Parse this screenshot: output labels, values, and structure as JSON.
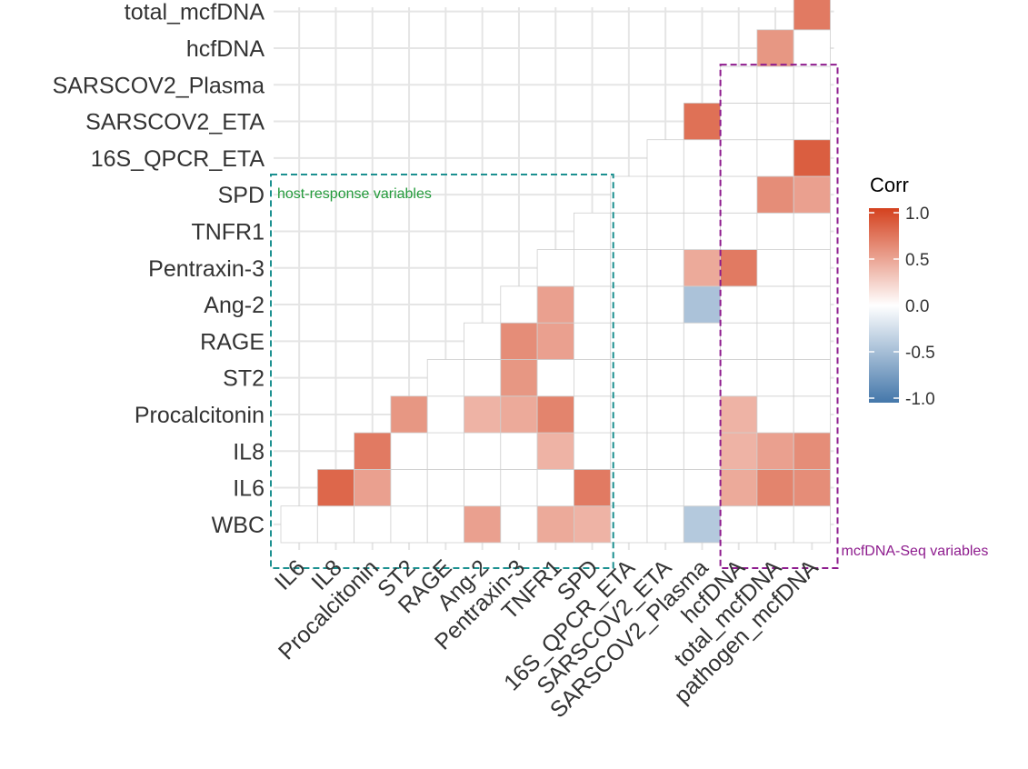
{
  "chart_data": {
    "type": "heatmap",
    "title": "",
    "variables": [
      "WBC",
      "IL6",
      "IL8",
      "Procalcitonin",
      "ST2",
      "RAGE",
      "Ang-2",
      "Pentraxin-3",
      "TNFR1",
      "SPD",
      "16S_QPCR_ETA",
      "SARSCOV2_ETA",
      "SARSCOV2_Plasma",
      "hcfDNA",
      "total_mcfDNA",
      "pathogen_mcfDNA"
    ],
    "x_labels": [
      "IL6",
      "IL8",
      "Procalcitonin",
      "ST2",
      "RAGE",
      "Ang-2",
      "Pentraxin-3",
      "TNFR1",
      "SPD",
      "16S_QPCR_ETA",
      "SARSCOV2_ETA",
      "SARSCOV2_Plasma",
      "hcfDNA",
      "total_mcfDNA",
      "pathogen_mcfDNA"
    ],
    "y_labels": [
      "WBC",
      "IL6",
      "IL8",
      "Procalcitonin",
      "ST2",
      "RAGE",
      "Ang-2",
      "Pentraxin-3",
      "TNFR1",
      "SPD",
      "16S_QPCR_ETA",
      "SARSCOV2_ETA",
      "SARSCOV2_Plasma",
      "hcfDNA",
      "total_mcfDNA"
    ],
    "cells": [
      [
        "IL6",
        "WBC",
        0
      ],
      [
        "IL8",
        "WBC",
        0
      ],
      [
        "Procalcitonin",
        "WBC",
        0
      ],
      [
        "ST2",
        "WBC",
        0
      ],
      [
        "RAGE",
        "WBC",
        0
      ],
      [
        "Ang-2",
        "WBC",
        0.5
      ],
      [
        "Pentraxin-3",
        "WBC",
        0
      ],
      [
        "TNFR1",
        "WBC",
        0.45
      ],
      [
        "SPD",
        "WBC",
        0.4
      ],
      [
        "16S_QPCR_ETA",
        "WBC",
        0
      ],
      [
        "SARSCOV2_ETA",
        "WBC",
        0
      ],
      [
        "SARSCOV2_Plasma",
        "WBC",
        -0.4
      ],
      [
        "hcfDNA",
        "WBC",
        0
      ],
      [
        "total_mcfDNA",
        "WBC",
        0
      ],
      [
        "pathogen_mcfDNA",
        "WBC",
        0
      ],
      [
        "IL8",
        "IL6",
        0.8
      ],
      [
        "Procalcitonin",
        "IL6",
        0.5
      ],
      [
        "ST2",
        "IL6",
        0
      ],
      [
        "RAGE",
        "IL6",
        0
      ],
      [
        "Ang-2",
        "IL6",
        0
      ],
      [
        "Pentraxin-3",
        "IL6",
        0
      ],
      [
        "TNFR1",
        "IL6",
        0
      ],
      [
        "SPD",
        "IL6",
        0.7
      ],
      [
        "16S_QPCR_ETA",
        "IL6",
        0
      ],
      [
        "SARSCOV2_ETA",
        "IL6",
        0
      ],
      [
        "SARSCOV2_Plasma",
        "IL6",
        0
      ],
      [
        "hcfDNA",
        "IL6",
        0.45
      ],
      [
        "total_mcfDNA",
        "IL6",
        0.65
      ],
      [
        "pathogen_mcfDNA",
        "IL6",
        0.6
      ],
      [
        "Procalcitonin",
        "IL8",
        0.7
      ],
      [
        "ST2",
        "IL8",
        0
      ],
      [
        "RAGE",
        "IL8",
        0
      ],
      [
        "Ang-2",
        "IL8",
        0
      ],
      [
        "Pentraxin-3",
        "IL8",
        0
      ],
      [
        "TNFR1",
        "IL8",
        0.4
      ],
      [
        "SPD",
        "IL8",
        0
      ],
      [
        "16S_QPCR_ETA",
        "IL8",
        0
      ],
      [
        "SARSCOV2_ETA",
        "IL8",
        0
      ],
      [
        "SARSCOV2_Plasma",
        "IL8",
        0
      ],
      [
        "hcfDNA",
        "IL8",
        0.4
      ],
      [
        "total_mcfDNA",
        "IL8",
        0.5
      ],
      [
        "pathogen_mcfDNA",
        "IL8",
        0.6
      ],
      [
        "ST2",
        "Procalcitonin",
        0.55
      ],
      [
        "RAGE",
        "Procalcitonin",
        0
      ],
      [
        "Ang-2",
        "Procalcitonin",
        0.4
      ],
      [
        "Pentraxin-3",
        "Procalcitonin",
        0.45
      ],
      [
        "TNFR1",
        "Procalcitonin",
        0.65
      ],
      [
        "SPD",
        "Procalcitonin",
        0
      ],
      [
        "16S_QPCR_ETA",
        "Procalcitonin",
        0
      ],
      [
        "SARSCOV2_ETA",
        "Procalcitonin",
        0
      ],
      [
        "SARSCOV2_Plasma",
        "Procalcitonin",
        0
      ],
      [
        "hcfDNA",
        "Procalcitonin",
        0.4
      ],
      [
        "total_mcfDNA",
        "Procalcitonin",
        0
      ],
      [
        "pathogen_mcfDNA",
        "Procalcitonin",
        0
      ],
      [
        "RAGE",
        "ST2",
        0
      ],
      [
        "Ang-2",
        "ST2",
        0
      ],
      [
        "Pentraxin-3",
        "ST2",
        0.55
      ],
      [
        "TNFR1",
        "ST2",
        0
      ],
      [
        "SPD",
        "ST2",
        0
      ],
      [
        "16S_QPCR_ETA",
        "ST2",
        0
      ],
      [
        "SARSCOV2_ETA",
        "ST2",
        0
      ],
      [
        "SARSCOV2_Plasma",
        "ST2",
        0
      ],
      [
        "hcfDNA",
        "ST2",
        0
      ],
      [
        "total_mcfDNA",
        "ST2",
        0
      ],
      [
        "pathogen_mcfDNA",
        "ST2",
        0
      ],
      [
        "Ang-2",
        "RAGE",
        0
      ],
      [
        "Pentraxin-3",
        "RAGE",
        0.6
      ],
      [
        "TNFR1",
        "RAGE",
        0.5
      ],
      [
        "SPD",
        "RAGE",
        0
      ],
      [
        "16S_QPCR_ETA",
        "RAGE",
        0
      ],
      [
        "SARSCOV2_ETA",
        "RAGE",
        0
      ],
      [
        "SARSCOV2_Plasma",
        "RAGE",
        0
      ],
      [
        "hcfDNA",
        "RAGE",
        0
      ],
      [
        "total_mcfDNA",
        "RAGE",
        0
      ],
      [
        "pathogen_mcfDNA",
        "RAGE",
        0
      ],
      [
        "Pentraxin-3",
        "Ang-2",
        0
      ],
      [
        "TNFR1",
        "Ang-2",
        0.5
      ],
      [
        "SPD",
        "Ang-2",
        0
      ],
      [
        "16S_QPCR_ETA",
        "Ang-2",
        0
      ],
      [
        "SARSCOV2_ETA",
        "Ang-2",
        0
      ],
      [
        "SARSCOV2_Plasma",
        "Ang-2",
        -0.45
      ],
      [
        "hcfDNA",
        "Ang-2",
        0
      ],
      [
        "total_mcfDNA",
        "Ang-2",
        0
      ],
      [
        "pathogen_mcfDNA",
        "Ang-2",
        0
      ],
      [
        "TNFR1",
        "Pentraxin-3",
        0
      ],
      [
        "SPD",
        "Pentraxin-3",
        0
      ],
      [
        "16S_QPCR_ETA",
        "Pentraxin-3",
        0
      ],
      [
        "SARSCOV2_ETA",
        "Pentraxin-3",
        0
      ],
      [
        "SARSCOV2_Plasma",
        "Pentraxin-3",
        0.45
      ],
      [
        "hcfDNA",
        "Pentraxin-3",
        0.7
      ],
      [
        "total_mcfDNA",
        "Pentraxin-3",
        0
      ],
      [
        "pathogen_mcfDNA",
        "Pentraxin-3",
        0
      ],
      [
        "SPD",
        "TNFR1",
        0
      ],
      [
        "16S_QPCR_ETA",
        "TNFR1",
        0
      ],
      [
        "SARSCOV2_ETA",
        "TNFR1",
        0
      ],
      [
        "SARSCOV2_Plasma",
        "TNFR1",
        0
      ],
      [
        "hcfDNA",
        "TNFR1",
        0
      ],
      [
        "total_mcfDNA",
        "TNFR1",
        0
      ],
      [
        "pathogen_mcfDNA",
        "TNFR1",
        0
      ],
      [
        "16S_QPCR_ETA",
        "SPD",
        0
      ],
      [
        "SARSCOV2_ETA",
        "SPD",
        0
      ],
      [
        "SARSCOV2_Plasma",
        "SPD",
        0
      ],
      [
        "hcfDNA",
        "SPD",
        0
      ],
      [
        "total_mcfDNA",
        "SPD",
        0.6
      ],
      [
        "pathogen_mcfDNA",
        "SPD",
        0.5
      ],
      [
        "SARSCOV2_ETA",
        "16S_QPCR_ETA",
        0
      ],
      [
        "SARSCOV2_Plasma",
        "16S_QPCR_ETA",
        0
      ],
      [
        "hcfDNA",
        "16S_QPCR_ETA",
        0
      ],
      [
        "total_mcfDNA",
        "16S_QPCR_ETA",
        0
      ],
      [
        "pathogen_mcfDNA",
        "16S_QPCR_ETA",
        0.85
      ],
      [
        "SARSCOV2_Plasma",
        "SARSCOV2_ETA",
        0.75
      ],
      [
        "hcfDNA",
        "SARSCOV2_ETA",
        0
      ],
      [
        "total_mcfDNA",
        "SARSCOV2_ETA",
        0
      ],
      [
        "pathogen_mcfDNA",
        "SARSCOV2_ETA",
        0
      ],
      [
        "hcfDNA",
        "SARSCOV2_Plasma",
        0
      ],
      [
        "total_mcfDNA",
        "SARSCOV2_Plasma",
        0
      ],
      [
        "pathogen_mcfDNA",
        "SARSCOV2_Plasma",
        0
      ],
      [
        "total_mcfDNA",
        "hcfDNA",
        0.55
      ],
      [
        "pathogen_mcfDNA",
        "hcfDNA",
        0
      ],
      [
        "pathogen_mcfDNA",
        "total_mcfDNA",
        0.7
      ]
    ],
    "legend": {
      "title": "Corr",
      "ticks": [
        "1.0",
        "0.5",
        "0.0",
        "-0.5",
        "-1.0"
      ],
      "range": [
        -1,
        1
      ],
      "colors": {
        "low": "#4477AA",
        "mid": "#FFFFFF",
        "high": "#D4411E"
      }
    },
    "grid": true,
    "groups": [
      {
        "label": "host-response variables",
        "color": "#1C9090",
        "label_color": "#239A3B",
        "x_from": "IL6",
        "x_to": "SPD",
        "y_from": "WBC",
        "y_to": "SPD"
      },
      {
        "label": "mcfDNA-Seq variables",
        "color": "#8E1C8E",
        "label_color": "#8E1C8E",
        "x_from": "hcfDNA",
        "x_to": "pathogen_mcfDNA",
        "y_from": "WBC",
        "y_to": "SARSCOV2_Plasma"
      }
    ]
  }
}
